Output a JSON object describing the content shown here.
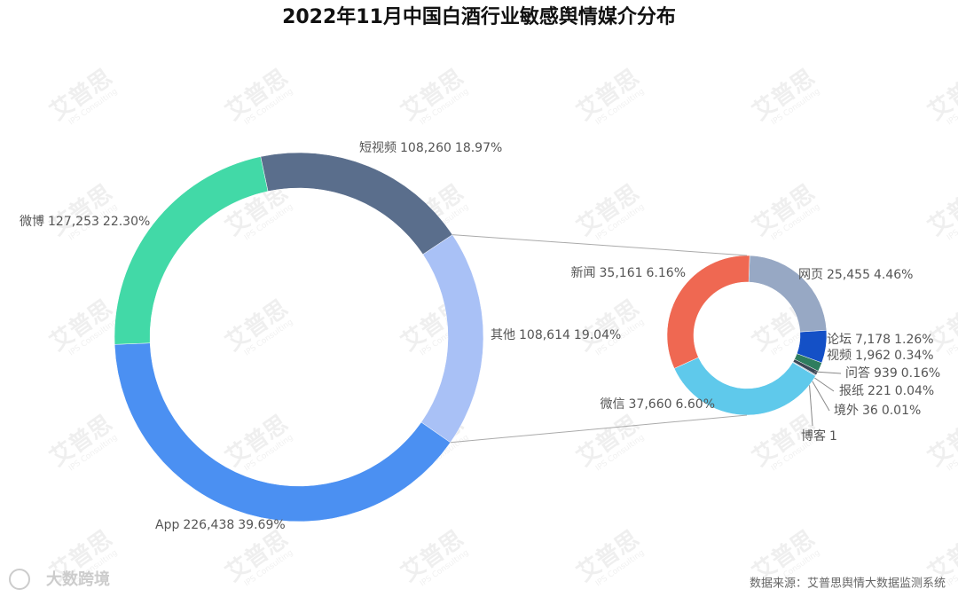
{
  "title": "2022年11月中国白酒行业敏感舆情媒介分布",
  "source": "数据来源：艾普思舆情大数据监测系统",
  "logo": "大数跨境",
  "watermark": "艾普思",
  "watermark_sub": "IPS Consulting",
  "chart_data": [
    {
      "type": "donut",
      "categories": [
        "短视频",
        "其他",
        "App",
        "微博"
      ],
      "values": [
        108260,
        108614,
        226438,
        127253
      ],
      "value_labels": [
        "108,260",
        "108,614",
        "226,438",
        "127,253"
      ],
      "shares": [
        18.97,
        19.04,
        39.69,
        22.3
      ],
      "share_labels": [
        "18.97%",
        "19.04%",
        "39.69%",
        "22.30%"
      ],
      "colors": [
        "#5a6e8c",
        "#a9c1f6",
        "#4b90f2",
        "#42d9a7"
      ]
    },
    {
      "type": "donut",
      "categories": [
        "网页",
        "论坛",
        "视频",
        "问答",
        "报纸",
        "境外",
        "博客",
        "微信",
        "新闻"
      ],
      "values": [
        25455,
        7178,
        1962,
        939,
        221,
        36,
        1,
        37660,
        35161
      ],
      "value_labels": [
        "25,455",
        "7,178",
        "1,962",
        "939",
        "221",
        "36",
        "1",
        "37,660",
        "35,161"
      ],
      "shares": [
        4.46,
        1.26,
        0.34,
        0.16,
        0.04,
        0.01,
        null,
        6.6,
        6.16
      ],
      "share_labels": [
        "4.46%",
        "1.26%",
        "0.34%",
        "0.16%",
        "0.04%",
        "0.01%",
        null,
        "6.60%",
        "6.16%"
      ],
      "colors": [
        "#97a8c4",
        "#1450c6",
        "#2e7d5e",
        "#3b4756",
        "#8fa0b8",
        "#6d7d90",
        "#2c3e50",
        "#5fc9eb",
        "#ef6852"
      ]
    }
  ]
}
